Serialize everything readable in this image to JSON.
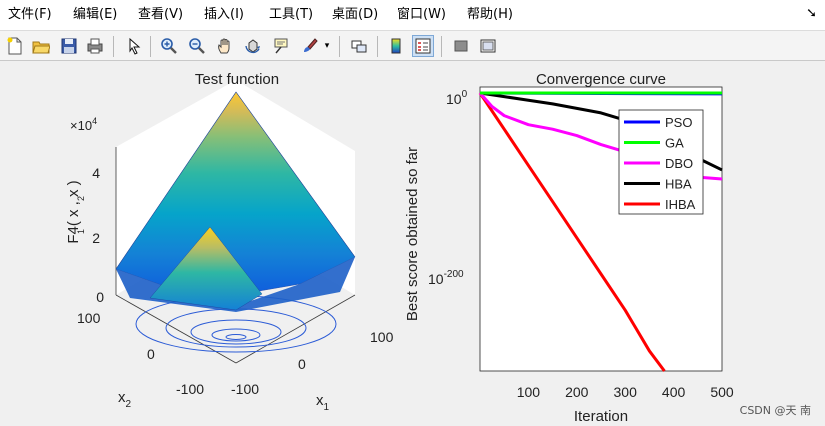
{
  "menu": {
    "items": [
      "文件(F)",
      "编辑(E)",
      "查看(V)",
      "插入(I)",
      "工具(T)",
      "桌面(D)",
      "窗口(W)",
      "帮助(H)"
    ],
    "dock_icon": "dock-arrow-icon"
  },
  "toolbar": {
    "buttons": [
      {
        "name": "new-figure-icon",
        "active": false
      },
      {
        "name": "open-file-icon",
        "active": false
      },
      {
        "name": "save-icon",
        "active": false
      },
      {
        "name": "print-icon",
        "active": false
      },
      {
        "name": "pointer-icon",
        "active": false
      },
      {
        "name": "zoom-in-icon",
        "active": false
      },
      {
        "name": "zoom-out-icon",
        "active": false
      },
      {
        "name": "pan-icon",
        "active": false
      },
      {
        "name": "rotate-3d-icon",
        "active": false
      },
      {
        "name": "data-cursor-icon",
        "active": false
      },
      {
        "name": "brush-icon",
        "active": false
      },
      {
        "name": "link-plot-icon",
        "active": false
      },
      {
        "name": "colorbar-icon",
        "active": false
      },
      {
        "name": "legend-icon",
        "active": true
      },
      {
        "name": "hide-plot-tools-icon",
        "active": false
      },
      {
        "name": "show-plot-tools-icon",
        "active": false
      }
    ]
  },
  "surface_plot": {
    "title": "Test function",
    "zlabel": "F4( x  , x  )",
    "zlabel_subscripts": [
      "1",
      "2"
    ],
    "exponent_label": "×10",
    "exponent_power": "4",
    "z_ticks": [
      "0",
      "2",
      "4"
    ],
    "x2_ticks": [
      "100",
      "0",
      "-100"
    ],
    "x1_ticks": [
      "-100",
      "0",
      "100"
    ],
    "x2_label": "x",
    "x2_sub": "2",
    "x1_label": "x",
    "x1_sub": "1",
    "colormap": [
      "#352a87",
      "#0f5cdd",
      "#1481d6",
      "#06a4ca",
      "#2eb7a4",
      "#87bf77",
      "#d1bb59",
      "#fec832",
      "#f9fb0e"
    ]
  },
  "chart_data": {
    "type": "line",
    "title": "Convergence curve",
    "xlabel": "Iteration",
    "ylabel": "Best score obtained so far",
    "yscale": "log",
    "xlim": [
      0,
      500
    ],
    "x_ticks": [
      "100",
      "200",
      "300",
      "400",
      "500"
    ],
    "y_ticks": [
      "10",
      "10"
    ],
    "y_tick_exponents": [
      "0",
      "-200"
    ],
    "legend_position": "top-right",
    "series": [
      {
        "name": "PSO",
        "color": "#0000ff",
        "x": [
          0,
          500
        ],
        "y_log10": [
          0,
          -1
        ]
      },
      {
        "name": "GA",
        "color": "#00ff00",
        "x": [
          0,
          500
        ],
        "y_log10": [
          0,
          0
        ]
      },
      {
        "name": "DBO",
        "color": "#ff00ff",
        "x": [
          0,
          25,
          50,
          100,
          150,
          200,
          250,
          300,
          350,
          400,
          450,
          500
        ],
        "y_log10": [
          0,
          -15,
          -25,
          -35,
          -40,
          -47,
          -57,
          -65,
          -75,
          -85,
          -93,
          -95
        ]
      },
      {
        "name": "HBA",
        "color": "#000000",
        "x": [
          0,
          50,
          100,
          150,
          200,
          250,
          300,
          350,
          400,
          450,
          500
        ],
        "y_log10": [
          0,
          -4,
          -8,
          -12,
          -17,
          -22,
          -30,
          -45,
          -60,
          -72,
          -85
        ]
      },
      {
        "name": "IHBA",
        "color": "#ff0000",
        "x": [
          0,
          50,
          100,
          150,
          200,
          250,
          300,
          350,
          385
        ],
        "y_log10": [
          0,
          -40,
          -80,
          -120,
          -160,
          -200,
          -240,
          -285,
          -310
        ]
      }
    ]
  },
  "watermark": "CSDN @天 南"
}
